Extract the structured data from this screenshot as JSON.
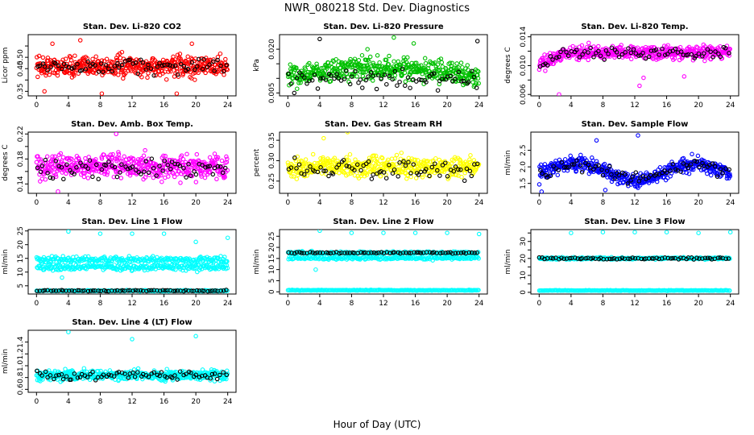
{
  "figure": {
    "title": "NWR_080218 Std. Dev. Diagnostics",
    "xlabel": "Hour of Day (UTC)"
  },
  "chart_data": [
    {
      "type": "scatter",
      "title": "Stan. Dev. Li-820 CO2",
      "ylabel": "Licor ppm",
      "xlim": [
        0,
        24
      ],
      "xticks": [
        0,
        4,
        8,
        12,
        16,
        20,
        24
      ],
      "ylim": [
        0.33,
        0.6
      ],
      "yticks": [
        0.35,
        0.4,
        0.45,
        0.5,
        0.55
      ],
      "ytick_labels": [
        "0.35",
        "",
        "0.45",
        "0.50",
        ""
      ],
      "series": [
        {
          "color": "#ff0000",
          "count": 480,
          "base": 0.46,
          "spread": 0.045,
          "outliers": [
            [
              1,
              0.35
            ],
            [
              5.5,
              0.575
            ],
            [
              8.2,
              0.34
            ],
            [
              17.6,
              0.34
            ],
            [
              2,
              0.56
            ],
            [
              19.5,
              0.56
            ]
          ]
        },
        {
          "color": "#000000",
          "count": 72,
          "base": 0.46,
          "spread": 0.035,
          "outliers": []
        }
      ]
    },
    {
      "type": "scatter",
      "title": "Stan. Dev. Li-820 Pressure",
      "ylabel": "kPa",
      "xlim": [
        0,
        24
      ],
      "xticks": [
        0,
        4,
        8,
        12,
        16,
        20,
        24
      ],
      "ylim": [
        0.004,
        0.025
      ],
      "yticks": [
        0.005,
        0.01,
        0.015,
        0.02
      ],
      "ytick_labels": [
        "0.005",
        "",
        "",
        "0.020"
      ],
      "series": [
        {
          "color": "#00c000",
          "count": 480,
          "base": 0.0105,
          "spread": 0.0035,
          "hump": 0.003,
          "outliers": [
            [
              13.3,
              0.024
            ],
            [
              15.8,
              0.022
            ],
            [
              10,
              0.02
            ]
          ]
        },
        {
          "color": "#000000",
          "count": 72,
          "base": 0.0095,
          "spread": 0.003,
          "outliers": [
            [
              4,
              0.0235
            ],
            [
              23.8,
              0.0228
            ]
          ]
        }
      ]
    },
    {
      "type": "scatter",
      "title": "Stan. Dev. Li-820 Temp.",
      "ylabel": "degrees C",
      "xlim": [
        0,
        24
      ],
      "xticks": [
        0,
        4,
        8,
        12,
        16,
        20,
        24
      ],
      "ylim": [
        0.0058,
        0.0143
      ],
      "yticks": [
        0.006,
        0.008,
        0.01,
        0.012,
        0.014
      ],
      "ytick_labels": [
        "0.006",
        "",
        "0.010",
        "",
        "0.014"
      ],
      "series": [
        {
          "color": "#ff00ff",
          "count": 480,
          "base": 0.0118,
          "spread": 0.0009,
          "ramp": true,
          "outliers": [
            [
              2.5,
              0.006
            ],
            [
              12.6,
              0.0072
            ],
            [
              18.2,
              0.0085
            ],
            [
              13.1,
              0.0083
            ]
          ]
        },
        {
          "color": "#000000",
          "count": 72,
          "base": 0.0118,
          "spread": 0.0008,
          "ramp": true,
          "outliers": []
        }
      ]
    },
    {
      "type": "scatter",
      "title": "Stan. Dev. Amb. Box Temp.",
      "ylabel": "degrees C",
      "xlim": [
        0,
        24
      ],
      "xticks": [
        0,
        4,
        8,
        12,
        16,
        20,
        24
      ],
      "ylim": [
        0.125,
        0.223
      ],
      "yticks": [
        0.14,
        0.16,
        0.18,
        0.2,
        0.22
      ],
      "ytick_labels": [
        "0.14",
        "",
        "0.18",
        "",
        "0.22"
      ],
      "series": [
        {
          "color": "#ff00ff",
          "count": 480,
          "base": 0.168,
          "spread": 0.018,
          "outliers": [
            [
              10,
              0.22
            ],
            [
              2.7,
              0.128
            ]
          ]
        },
        {
          "color": "#000000",
          "count": 72,
          "base": 0.165,
          "spread": 0.015,
          "outliers": []
        }
      ]
    },
    {
      "type": "scatter",
      "title": "Stan. Dev. Gas Stream RH",
      "ylabel": "percent",
      "xlim": [
        0,
        24
      ],
      "xticks": [
        0,
        4,
        8,
        12,
        16,
        20,
        24
      ],
      "ylim": [
        0.22,
        0.37
      ],
      "yticks": [
        0.25,
        0.3,
        0.35
      ],
      "ytick_labels": [
        "0.25",
        "0.30",
        "0.35"
      ],
      "series": [
        {
          "color": "#ffff00",
          "count": 480,
          "base": 0.285,
          "spread": 0.025,
          "outliers": [
            [
              7.5,
              0.37
            ],
            [
              4.5,
              0.355
            ]
          ]
        },
        {
          "color": "#000000",
          "count": 72,
          "base": 0.28,
          "spread": 0.025,
          "outliers": []
        }
      ]
    },
    {
      "type": "scatter",
      "title": "Stan. Dev. Sample Flow",
      "ylabel": "ml/min",
      "xlim": [
        0,
        24
      ],
      "xticks": [
        0,
        4,
        8,
        12,
        16,
        20,
        24
      ],
      "ylim": [
        1.2,
        3.05
      ],
      "yticks": [
        1.5,
        2.0,
        2.5
      ],
      "ytick_labels": [
        "1.5",
        "2.0",
        "2.5"
      ],
      "series": [
        {
          "color": "#0000ff",
          "count": 480,
          "base": 1.85,
          "spread": 0.22,
          "wave": 0.35,
          "outliers": [
            [
              12.4,
              2.95
            ],
            [
              8.3,
              1.3
            ],
            [
              0.3,
              1.25
            ],
            [
              7.2,
              2.8
            ]
          ]
        },
        {
          "color": "#000000",
          "count": 72,
          "base": 1.85,
          "spread": 0.2,
          "wave": 0.3,
          "outliers": []
        }
      ]
    },
    {
      "type": "scatter",
      "title": "Stan. Dev. Line 1 Flow",
      "ylabel": "ml/min",
      "xlim": [
        0,
        24
      ],
      "xticks": [
        0,
        4,
        8,
        12,
        16,
        20,
        24
      ],
      "ylim": [
        2,
        25.5
      ],
      "yticks": [
        5,
        10,
        15,
        20,
        25
      ],
      "ytick_labels": [
        "5",
        "10",
        "15",
        "20",
        "25"
      ],
      "series": [
        {
          "color": "#00ffff",
          "count": 480,
          "base": 13,
          "spread": 1.2,
          "bands": [
            14.5,
            11.8
          ],
          "outliers": [
            [
              4,
              24.8
            ],
            [
              8,
              24
            ],
            [
              12,
              24
            ],
            [
              16,
              24
            ],
            [
              20,
              21
            ],
            [
              24,
              22.5
            ],
            [
              3.2,
              8
            ]
          ]
        },
        {
          "color": "#00ffff",
          "count": 200,
          "base": 3.2,
          "spread": 0.2,
          "outliers": []
        },
        {
          "color": "#000000",
          "count": 72,
          "base": 3.2,
          "spread": 0.2,
          "outliers": []
        }
      ]
    },
    {
      "type": "scatter",
      "title": "Stan. Dev. Line 2 Flow",
      "ylabel": "ml/min",
      "xlim": [
        0,
        24
      ],
      "xticks": [
        0,
        4,
        8,
        12,
        16,
        20,
        24
      ],
      "ylim": [
        -1,
        28
      ],
      "yticks": [
        0,
        5,
        10,
        15,
        20,
        25
      ],
      "ytick_labels": [
        "0",
        "5",
        "10",
        "15",
        "20",
        "25"
      ],
      "series": [
        {
          "color": "#00ffff",
          "count": 400,
          "base": 16.5,
          "spread": 0.7,
          "bands": [
            17.6,
            15.2
          ],
          "outliers": [
            [
              4,
              27.5
            ],
            [
              8,
              26.5
            ],
            [
              12,
              26.5
            ],
            [
              16,
              26.5
            ],
            [
              20,
              26.5
            ],
            [
              24,
              26
            ],
            [
              3.5,
              10
            ]
          ]
        },
        {
          "color": "#00ffff",
          "count": 200,
          "base": 0.7,
          "spread": 0.15,
          "outliers": []
        },
        {
          "color": "#000000",
          "count": 72,
          "base": 17.6,
          "spread": 0.3,
          "outliers": []
        }
      ]
    },
    {
      "type": "scatter",
      "title": "Stan. Dev. Line 3 Flow",
      "ylabel": "ml/min",
      "xlim": [
        0,
        24
      ],
      "xticks": [
        0,
        4,
        8,
        12,
        16,
        20,
        24
      ],
      "ylim": [
        -1,
        37
      ],
      "yticks": [
        0,
        5,
        10,
        15,
        20,
        25,
        30,
        35
      ],
      "ytick_labels": [
        "0",
        "",
        "10",
        "",
        "20",
        "",
        "30",
        ""
      ],
      "series": [
        {
          "color": "#00ffff",
          "count": 300,
          "base": 20,
          "spread": 0.6,
          "outliers": [
            [
              4,
              35
            ],
            [
              8,
              35.5
            ],
            [
              12,
              35.5
            ],
            [
              16,
              35.5
            ],
            [
              20,
              35
            ],
            [
              24,
              35.5
            ]
          ]
        },
        {
          "color": "#00ffff",
          "count": 200,
          "base": 1.1,
          "spread": 0.15,
          "outliers": []
        },
        {
          "color": "#000000",
          "count": 72,
          "base": 20,
          "spread": 0.5,
          "outliers": []
        }
      ]
    },
    {
      "type": "scatter",
      "title": "Stan. Dev. Line 4 (LT) Flow",
      "ylabel": "ml/min",
      "xlim": [
        0,
        24
      ],
      "xticks": [
        0,
        4,
        8,
        12,
        16,
        20,
        24
      ],
      "ylim": [
        0.55,
        1.6
      ],
      "yticks": [
        0.6,
        0.8,
        1.0,
        1.2,
        1.4
      ],
      "ytick_labels": [
        "0.6",
        "0.8",
        "1.0",
        "1.2",
        "1.4"
      ],
      "series": [
        {
          "color": "#00ffff",
          "count": 480,
          "base": 0.84,
          "spread": 0.08,
          "outliers": [
            [
              4,
              1.57
            ],
            [
              12,
              1.45
            ],
            [
              20,
              1.5
            ]
          ]
        },
        {
          "color": "#000000",
          "count": 72,
          "base": 0.84,
          "spread": 0.07,
          "outliers": []
        }
      ]
    }
  ]
}
